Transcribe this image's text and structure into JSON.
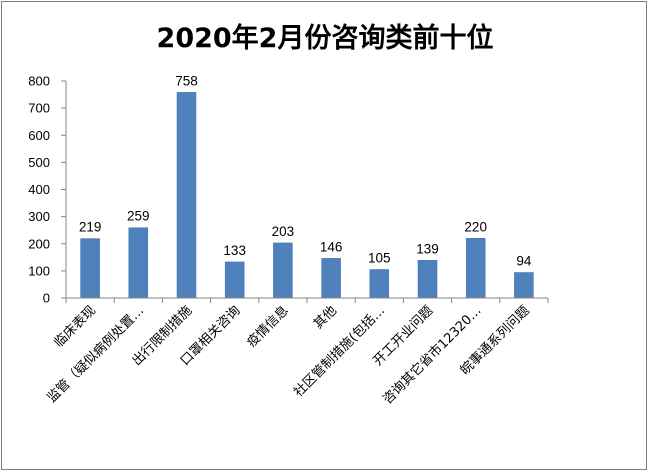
{
  "chart_data": {
    "type": "bar",
    "title": "2020年2月份咨询类前十位",
    "xlabel": "",
    "ylabel": "",
    "ylim": [
      0,
      800
    ],
    "yticks": [
      0,
      100,
      200,
      300,
      400,
      500,
      600,
      700,
      800
    ],
    "categories": [
      "临床表现",
      "监管（疑似病例处置…",
      "出行限制措施",
      "口罩相关咨询",
      "疫情信息",
      "其他",
      "社区管制措施(包括…",
      "开工开业问题",
      "咨询其它省市12320…",
      "皖事通系列问题"
    ],
    "values": [
      219,
      259,
      758,
      133,
      203,
      146,
      105,
      139,
      220,
      94
    ],
    "bar_color": "#4f81bd",
    "grid": false,
    "legend": "none"
  }
}
